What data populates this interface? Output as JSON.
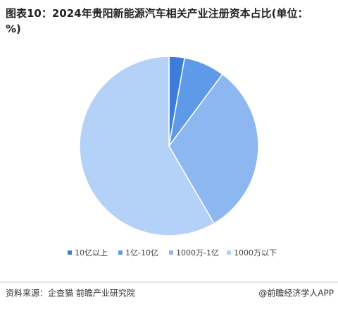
{
  "chart_data": {
    "type": "pie",
    "title": "图表10：2024年贵阳新能源汽车相关产业注册资本占比(单位：%)",
    "categories": [
      "10亿以上",
      "1亿-10亿",
      "1000万-1亿",
      "1000万以下"
    ],
    "values": [
      2.8,
      7.4,
      31.4,
      58.4
    ],
    "colors": [
      "#3b7dd8",
      "#5e9ae8",
      "#8cb7f0",
      "#b4d1f8"
    ],
    "source": "资料来源：企查猫 前瞻产业研究院",
    "credit": "@前瞻经济学人APP"
  }
}
